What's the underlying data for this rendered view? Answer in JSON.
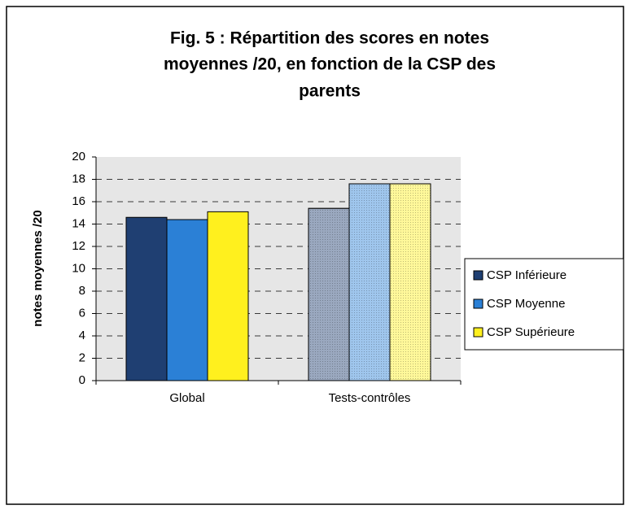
{
  "chart_data": {
    "type": "bar",
    "title": [
      "Fig. 5 : Répartition des scores en notes",
      "moyennes /20, en fonction de la CSP des",
      "parents"
    ],
    "y_label": "notes moyennes /20",
    "categories": [
      "Global",
      "Tests-contrôles"
    ],
    "series": [
      {
        "name": "CSP Inférieure",
        "color": "#1f3f72",
        "values": [
          14.6,
          15.4
        ]
      },
      {
        "name": "CSP Moyenne",
        "color": "#2b80d6",
        "values": [
          14.4,
          17.6
        ]
      },
      {
        "name": "CSP Supérieure",
        "color": "#fff01e",
        "values": [
          15.1,
          17.6
        ]
      }
    ],
    "ylim": [
      0,
      20
    ],
    "yticks": [
      0,
      2,
      4,
      6,
      8,
      10,
      12,
      14,
      16,
      18,
      20
    ],
    "grid": true,
    "legend": "right"
  }
}
